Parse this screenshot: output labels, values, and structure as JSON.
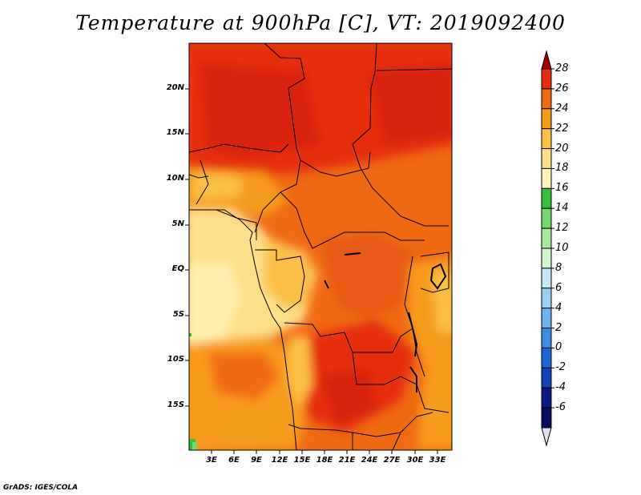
{
  "title": "Temperature at 900hPa [C], VT: 2019092400",
  "credit": "GrADS: IGES/COLA",
  "lat_labels": [
    "20N",
    "15N",
    "10N",
    "5N",
    "EQ",
    "5S",
    "10S",
    "15S"
  ],
  "lon_labels": [
    "3E",
    "6E",
    "9E",
    "12E",
    "15E",
    "18E",
    "21E",
    "24E",
    "27E",
    "30E",
    "33E"
  ],
  "colorbar": {
    "labels": [
      "28",
      "26",
      "24",
      "22",
      "20",
      "18",
      "16",
      "14",
      "12",
      "10",
      "8",
      "6",
      "4",
      "2",
      "0",
      "-2",
      "-4",
      "-6"
    ],
    "colors": [
      "#a00000",
      "#e62d10",
      "#f06a14",
      "#f79b1b",
      "#fbc045",
      "#fde089",
      "#fff5b5",
      "#38c03c",
      "#76d66f",
      "#a7e8a1",
      "#d0f5cc",
      "#c7e6f8",
      "#9dcff4",
      "#6db1ee",
      "#3d8ce3",
      "#1e66d5",
      "#1444b5",
      "#0b1a8a",
      "#0a0a60",
      "#e0e0f4"
    ]
  }
}
